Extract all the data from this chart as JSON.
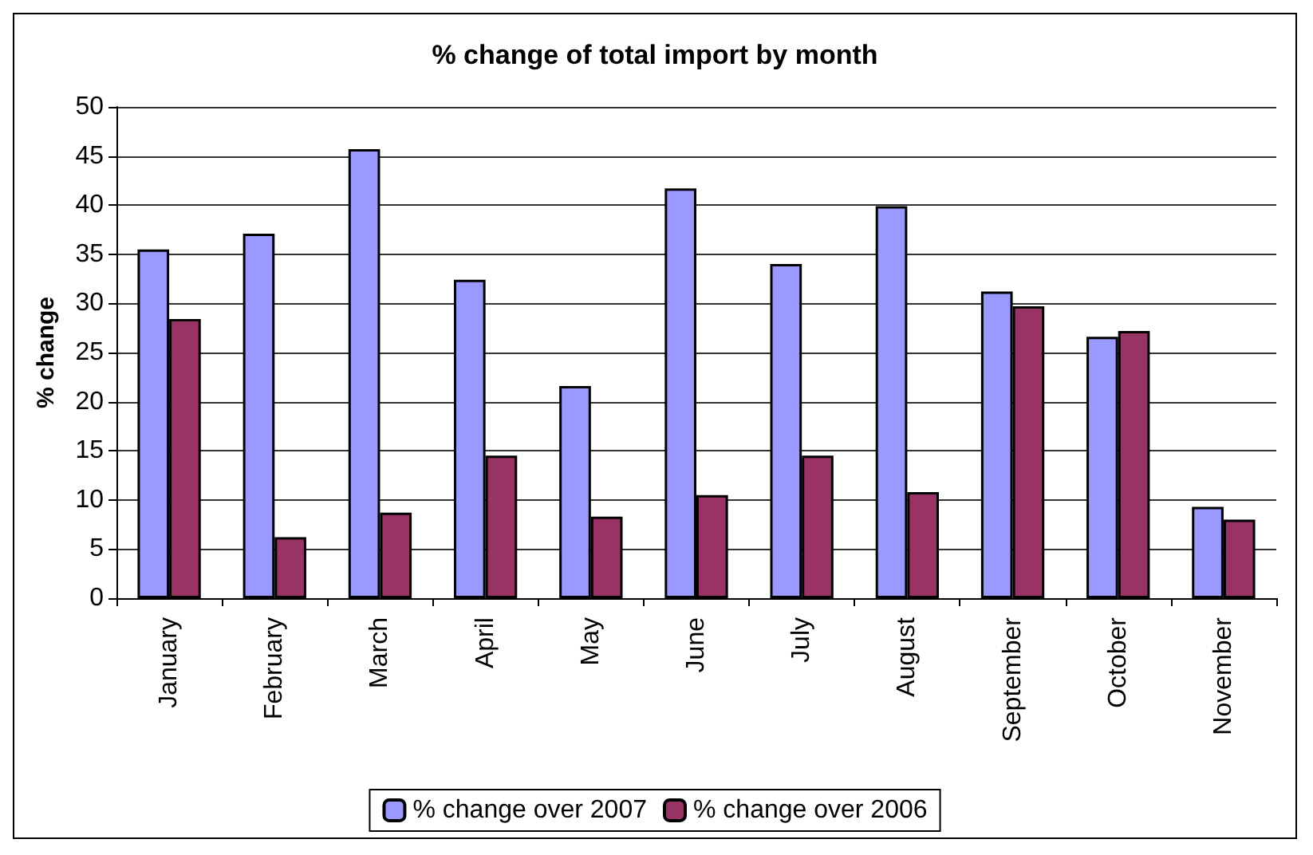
{
  "chart_data": {
    "type": "bar",
    "title": "% change of total import by month",
    "ylabel": "% change",
    "categories": [
      "January",
      "February",
      "March",
      "April",
      "May",
      "June",
      "July",
      "August",
      "September",
      "October",
      "November"
    ],
    "series": [
      {
        "name": "% change over 2007",
        "color": "#9999ff",
        "values": [
          35.5,
          37.1,
          45.7,
          32.4,
          21.6,
          41.7,
          34.0,
          39.9,
          31.2,
          26.6,
          9.3
        ]
      },
      {
        "name": "% change over 2006",
        "color": "#993366",
        "values": [
          28.4,
          6.2,
          8.7,
          14.5,
          8.3,
          10.5,
          14.5,
          10.8,
          29.7,
          27.2,
          8.0
        ]
      }
    ],
    "ylim": [
      0,
      50
    ],
    "yticks": [
      0,
      5,
      10,
      15,
      20,
      25,
      30,
      35,
      40,
      45,
      50
    ],
    "grid": "y",
    "legend": "bottom"
  }
}
